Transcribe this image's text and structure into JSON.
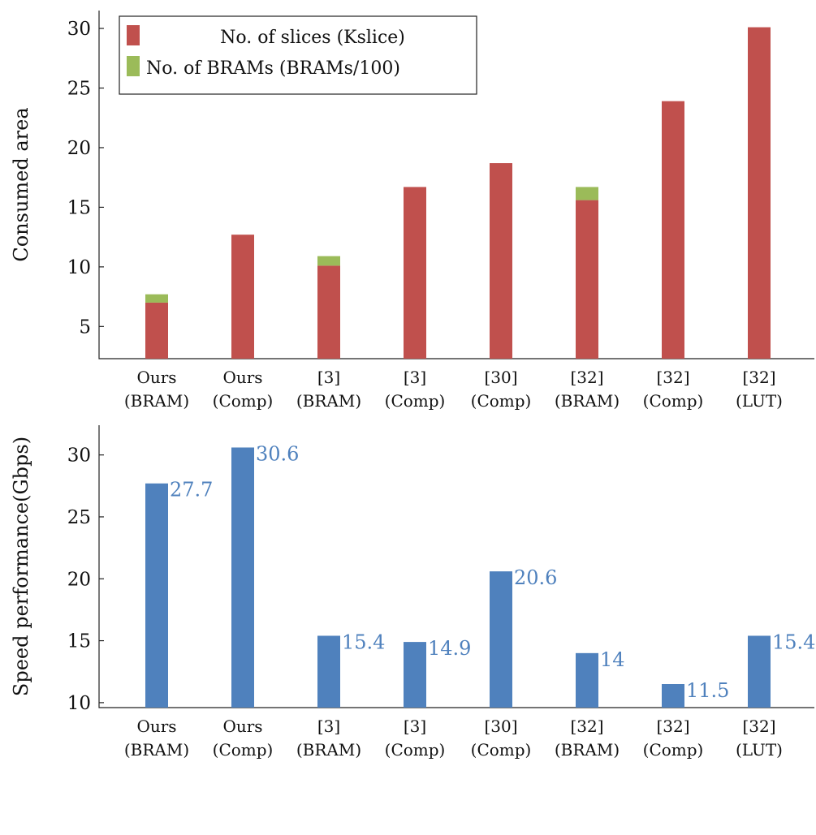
{
  "chart_data": [
    {
      "type": "bar",
      "stacked": true,
      "categories": [
        [
          "Ours",
          "(BRAM)"
        ],
        [
          "Ours",
          "(Comp)"
        ],
        [
          "[3]",
          "(BRAM)"
        ],
        [
          "[3]",
          "(Comp)"
        ],
        [
          "[30]",
          "(Comp)"
        ],
        [
          "[32]",
          "(BRAM)"
        ],
        [
          "[32]",
          "(Comp)"
        ],
        [
          "[32]",
          "(LUT)"
        ]
      ],
      "series": [
        {
          "name": "No. of slices (Kslice)",
          "color": "#c0504d",
          "values": [
            4.7,
            10.4,
            7.8,
            14.4,
            16.4,
            13.3,
            21.6,
            27.8
          ]
        },
        {
          "name": "No. of BRAMs (BRAMs/100)",
          "color": "#9bbb59",
          "values": [
            0.7,
            0,
            0.8,
            0,
            0,
            1.1,
            0,
            0
          ]
        }
      ],
      "ylabel": "Consumed area",
      "xlabel": "",
      "ylim": [
        2.3,
        31.5
      ],
      "yticks": [
        5,
        10,
        15,
        20,
        25,
        30
      ],
      "legend": "top-left",
      "grid": false
    },
    {
      "type": "bar",
      "categories": [
        [
          "Ours",
          "(BRAM)"
        ],
        [
          "Ours",
          "(Comp)"
        ],
        [
          "[3]",
          "(BRAM)"
        ],
        [
          "[3]",
          "(Comp)"
        ],
        [
          "[30]",
          "(Comp)"
        ],
        [
          "[32]",
          "(BRAM)"
        ],
        [
          "[32]",
          "(Comp)"
        ],
        [
          "[32]",
          "(LUT)"
        ]
      ],
      "series": [
        {
          "color": "#4f81bd",
          "values": [
            27.7,
            30.6,
            15.4,
            14.9,
            20.6,
            14,
            11.5,
            15.4
          ]
        }
      ],
      "data_labels": [
        "27.7",
        "30.6",
        "15.4",
        "14.9",
        "20.6",
        "14",
        "11.5",
        "15.4"
      ],
      "ylabel": "Speed performance(Gbps)",
      "xlabel": "",
      "ylim": [
        9.6,
        32.4
      ],
      "yticks": [
        10,
        15,
        20,
        25,
        30
      ],
      "legend": "none",
      "grid": false
    }
  ]
}
